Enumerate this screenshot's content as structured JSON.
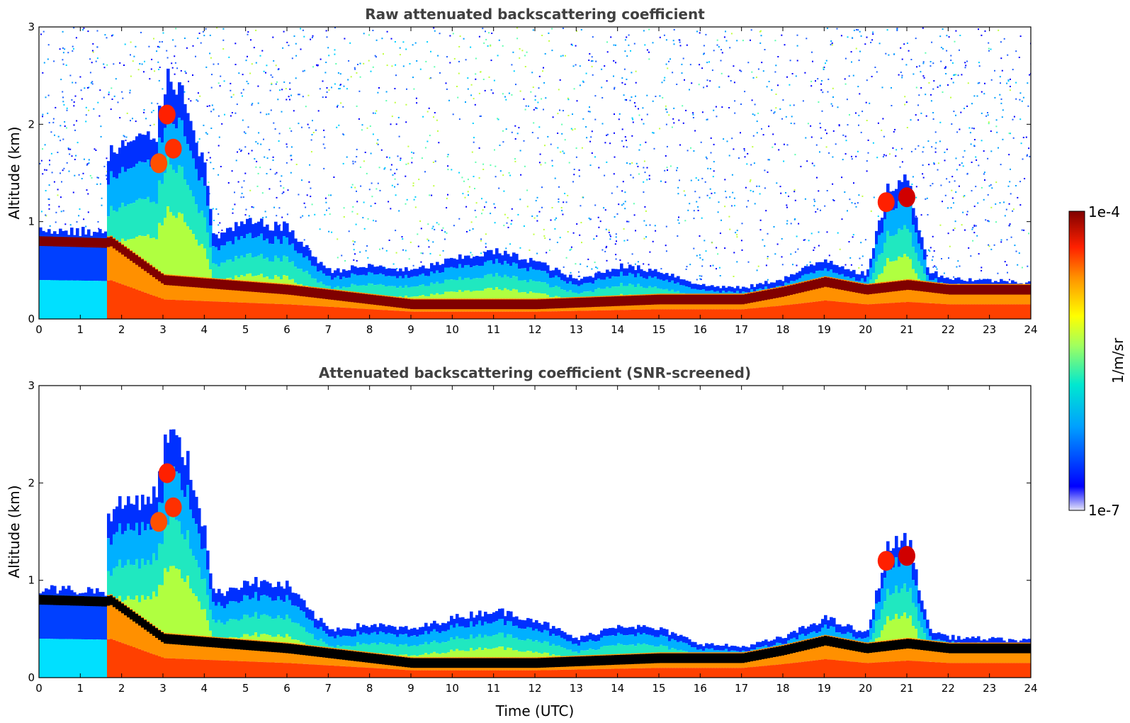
{
  "chart_data": [
    {
      "type": "heatmap",
      "title": "Raw attenuated backscattering coefficient",
      "xlabel": "",
      "ylabel": "Altitude (km)",
      "xlim": [
        0,
        24
      ],
      "ylim": [
        0,
        3
      ],
      "xticks": [
        0,
        1,
        2,
        3,
        4,
        5,
        6,
        7,
        8,
        9,
        10,
        11,
        12,
        13,
        14,
        15,
        16,
        17,
        18,
        19,
        20,
        21,
        22,
        23,
        24
      ],
      "yticks": [
        0,
        1,
        2,
        3
      ],
      "screened": false
    },
    {
      "type": "heatmap",
      "title": "Attenuated backscattering coefficient (SNR-screened)",
      "xlabel": "Time (UTC)",
      "ylabel": "Altitude (km)",
      "xlim": [
        0,
        24
      ],
      "ylim": [
        0,
        3
      ],
      "xticks": [
        0,
        1,
        2,
        3,
        4,
        5,
        6,
        7,
        8,
        9,
        10,
        11,
        12,
        13,
        14,
        15,
        16,
        17,
        18,
        19,
        20,
        21,
        22,
        23,
        24
      ],
      "yticks": [
        0,
        1,
        2,
        3
      ],
      "screened": true
    }
  ],
  "colorbar": {
    "label": "1/m/sr",
    "max_label": "1e-4",
    "min_label": "1e-7",
    "scale": "log",
    "range": [
      1e-07,
      0.0001
    ],
    "colors": [
      "#e8e8f8",
      "#0000ff",
      "#00a0ff",
      "#00e8d0",
      "#a0ff60",
      "#ffff00",
      "#ff9000",
      "#ff2000",
      "#800000"
    ]
  },
  "features": {
    "cloud_top_km": [
      [
        0,
        0.92
      ],
      [
        1.6,
        0.9
      ],
      [
        1.65,
        1.7
      ],
      [
        2,
        1.8
      ],
      [
        2.8,
        1.9
      ],
      [
        3.1,
        2.6
      ],
      [
        3.6,
        2.2
      ],
      [
        4,
        1.5
      ],
      [
        4.2,
        0.85
      ],
      [
        5,
        1.0
      ],
      [
        6,
        0.95
      ],
      [
        6.5,
        0.7
      ],
      [
        7,
        0.5
      ],
      [
        8,
        0.55
      ],
      [
        9,
        0.5
      ],
      [
        10,
        0.62
      ],
      [
        11,
        0.7
      ],
      [
        12,
        0.6
      ],
      [
        13,
        0.4
      ],
      [
        14,
        0.55
      ],
      [
        15,
        0.5
      ],
      [
        16,
        0.35
      ],
      [
        17,
        0.32
      ],
      [
        18,
        0.42
      ],
      [
        19,
        0.62
      ],
      [
        20,
        0.45
      ],
      [
        20.5,
        1.35
      ],
      [
        21,
        1.45
      ],
      [
        21.5,
        0.5
      ],
      [
        22,
        0.42
      ],
      [
        24,
        0.38
      ]
    ],
    "cloud_layer_km": [
      [
        0,
        0.8
      ],
      [
        1.6,
        0.78
      ],
      [
        1.7,
        0.8
      ],
      [
        3,
        0.4
      ],
      [
        6,
        0.3
      ],
      [
        9,
        0.15
      ],
      [
        12,
        0.15
      ],
      [
        15,
        0.2
      ],
      [
        16,
        0.2
      ],
      [
        17,
        0.2
      ],
      [
        18,
        0.28
      ],
      [
        19,
        0.38
      ],
      [
        20,
        0.3
      ],
      [
        21,
        0.35
      ],
      [
        22,
        0.3
      ],
      [
        24,
        0.3
      ]
    ]
  }
}
